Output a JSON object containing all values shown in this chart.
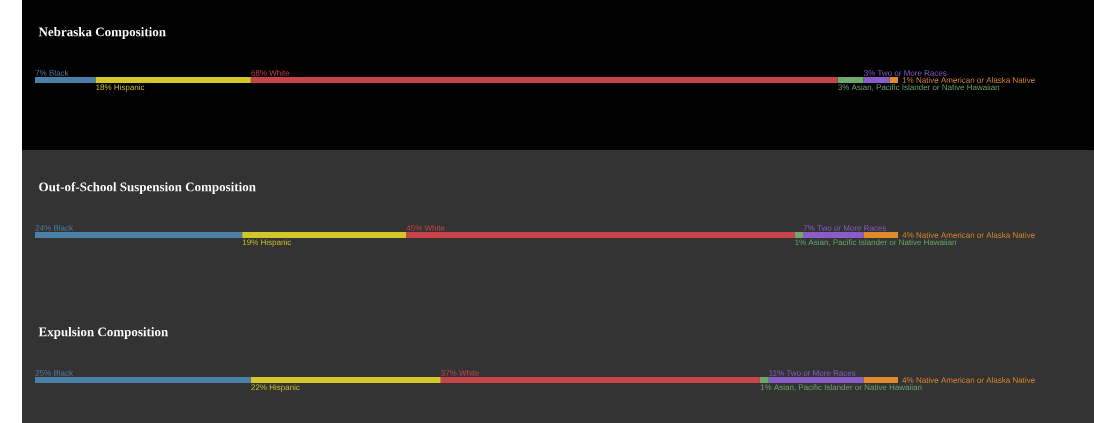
{
  "chart_data": [
    {
      "type": "bar",
      "orientation": "horizontal",
      "stacked": true,
      "title": "Nebraska Composition",
      "categories": [
        null
      ],
      "series": [
        {
          "name": "Black",
          "color": "#4a7fa8",
          "values": [
            7
          ],
          "value_labels": [
            "7%"
          ]
        },
        {
          "name": "Hispanic",
          "color": "#d4c72a",
          "values": [
            18
          ],
          "value_labels": [
            "18%"
          ]
        },
        {
          "name": "White",
          "color": "#c9444a",
          "values": [
            68
          ],
          "value_labels": [
            "68%"
          ]
        },
        {
          "name": "Asian, Pacific Islander or Native Hawaiian",
          "color": "#6fa86a",
          "values": [
            3
          ],
          "value_labels": [
            "3%"
          ]
        },
        {
          "name": "Two or More Races",
          "color": "#8a5cc9",
          "values": [
            3
          ],
          "value_labels": [
            "3%"
          ]
        },
        {
          "name": "Native American or Alaska Native",
          "color": "#e08a2a",
          "values": [
            1
          ],
          "value_labels": [
            "1%"
          ]
        }
      ]
    },
    {
      "type": "bar",
      "orientation": "horizontal",
      "stacked": true,
      "title": "Out-of-School Suspension Composition",
      "categories": [
        null
      ],
      "series": [
        {
          "name": "Black",
          "color": "#4a7fa8",
          "values": [
            24
          ],
          "value_labels": [
            "24%"
          ]
        },
        {
          "name": "Hispanic",
          "color": "#d4c72a",
          "values": [
            19
          ],
          "value_labels": [
            "19%"
          ]
        },
        {
          "name": "White",
          "color": "#c9444a",
          "values": [
            45
          ],
          "value_labels": [
            "45%"
          ]
        },
        {
          "name": "Asian, Pacific Islander or Native Hawaiian",
          "color": "#6fa86a",
          "values": [
            1
          ],
          "value_labels": [
            "1%"
          ]
        },
        {
          "name": "Two or More Races",
          "color": "#8a5cc9",
          "values": [
            7
          ],
          "value_labels": [
            "7%"
          ]
        },
        {
          "name": "Native American or Alaska Native",
          "color": "#e08a2a",
          "values": [
            4
          ],
          "value_labels": [
            "4%"
          ]
        }
      ]
    },
    {
      "type": "bar",
      "orientation": "horizontal",
      "stacked": true,
      "title": "Expulsion Composition",
      "categories": [
        null
      ],
      "series": [
        {
          "name": "Black",
          "color": "#4a7fa8",
          "values": [
            25
          ],
          "value_labels": [
            "25%"
          ]
        },
        {
          "name": "Hispanic",
          "color": "#d4c72a",
          "values": [
            22
          ],
          "value_labels": [
            "22%"
          ]
        },
        {
          "name": "White",
          "color": "#c9444a",
          "values": [
            37
          ],
          "value_labels": [
            "37%"
          ]
        },
        {
          "name": "Asian, Pacific Islander or Native Hawaiian",
          "color": "#6fa86a",
          "values": [
            1
          ],
          "value_labels": [
            "1%"
          ]
        },
        {
          "name": "Two or More Races",
          "color": "#8a5cc9",
          "values": [
            11
          ],
          "value_labels": [
            "11%"
          ]
        },
        {
          "name": "Native American or Alaska Native",
          "color": "#e08a2a",
          "values": [
            4
          ],
          "value_labels": [
            "4%"
          ]
        }
      ]
    }
  ]
}
